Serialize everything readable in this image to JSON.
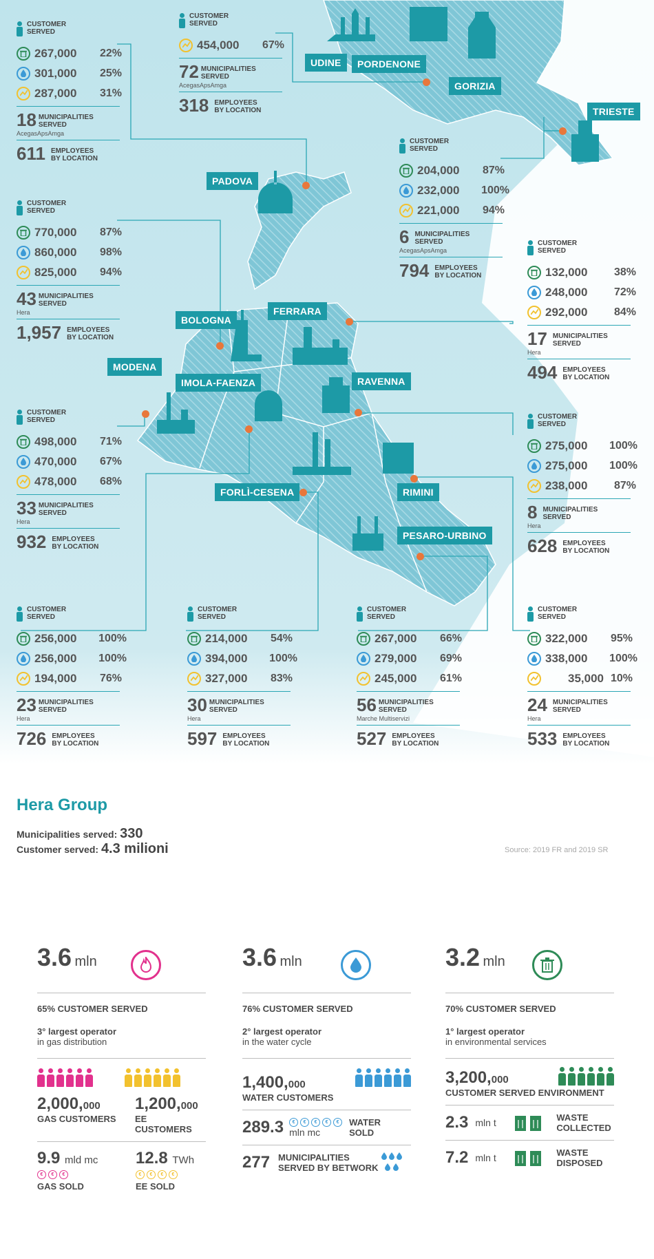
{
  "labels": {
    "customer": "CUSTOMER",
    "served": "SERVED",
    "municipalities": "MUNICIPALITIES",
    "employees": "EMPLOYEES",
    "by_location": "BY LOCATION"
  },
  "colors": {
    "teal": "#1d9aa6",
    "line": "#2aa6b4",
    "waste": "#2e8b57",
    "water": "#3b9ad6",
    "energy": "#f2c12e",
    "gas": "#e2318d",
    "dot": "#e8773b"
  },
  "cities": [
    "UDINE",
    "PORDENONE",
    "GORIZIA",
    "TRIESTE",
    "PADOVA",
    "FERRARA",
    "BOLOGNA",
    "MODENA",
    "IMOLA-FAENZA",
    "RAVENNA",
    "FORLÌ-CESENA",
    "RIMINI",
    "PESARO-URBINO"
  ],
  "blocks": {
    "udine": {
      "waste": "267,000",
      "waste_pct": "22%",
      "water": "301,000",
      "water_pct": "25%",
      "energy": "287,000",
      "energy_pct": "31%",
      "mun": "18",
      "company": "AcegasApsAmga",
      "emp": "611"
    },
    "pordenone": {
      "energy": "454,000",
      "energy_pct": "67%",
      "mun": "72",
      "company": "AcegasApsAmga",
      "emp": "318"
    },
    "trieste": {
      "waste": "204,000",
      "waste_pct": "87%",
      "water": "232,000",
      "water_pct": "100%",
      "energy": "221,000",
      "energy_pct": "94%",
      "mun": "6",
      "company": "AcegasApsAmga",
      "emp": "794"
    },
    "bologna": {
      "waste": "770,000",
      "waste_pct": "87%",
      "water": "860,000",
      "water_pct": "98%",
      "energy": "825,000",
      "energy_pct": "94%",
      "mun": "43",
      "company": "Hera",
      "emp": "1,957"
    },
    "ferrara": {
      "waste": "132,000",
      "waste_pct": "38%",
      "water": "248,000",
      "water_pct": "72%",
      "energy": "292,000",
      "energy_pct": "84%",
      "mun": "17",
      "company": "Hera",
      "emp": "494"
    },
    "modena": {
      "waste": "498,000",
      "waste_pct": "71%",
      "water": "470,000",
      "water_pct": "67%",
      "energy": "478,000",
      "energy_pct": "68%",
      "mun": "33",
      "company": "Hera",
      "emp": "932"
    },
    "ravenna": {
      "waste": "275,000",
      "waste_pct": "100%",
      "water": "275,000",
      "water_pct": "100%",
      "energy": "238,000",
      "energy_pct": "87%",
      "mun": "8",
      "company": "Hera",
      "emp": "628"
    },
    "imola": {
      "waste": "256,000",
      "waste_pct": "100%",
      "water": "256,000",
      "water_pct": "100%",
      "energy": "194,000",
      "energy_pct": "76%",
      "mun": "23",
      "company": "Hera",
      "emp": "726"
    },
    "forli": {
      "waste": "214,000",
      "waste_pct": "54%",
      "water": "394,000",
      "water_pct": "100%",
      "energy": "327,000",
      "energy_pct": "83%",
      "mun": "30",
      "company": "Hera",
      "emp": "597"
    },
    "pesaro": {
      "waste": "267,000",
      "waste_pct": "66%",
      "water": "279,000",
      "water_pct": "69%",
      "energy": "245,000",
      "energy_pct": "61%",
      "mun": "56",
      "company": "Marche Multiservizi",
      "emp": "527"
    },
    "rimini": {
      "waste": "322,000",
      "waste_pct": "95%",
      "water": "338,000",
      "water_pct": "100%",
      "energy": "35,000",
      "energy_pct": "10%",
      "mun": "24",
      "company": "Hera",
      "emp": "533"
    }
  },
  "hera": {
    "title": "Hera Group",
    "mun_label": "Municipalities served:",
    "mun_value": "330",
    "cust_label": "Customer served:",
    "cust_value": "4.3 milioni",
    "source": "Source: 2019 FR and 2019 SR"
  },
  "gas": {
    "big": "3.6",
    "unit": "mln",
    "share": "65% CUSTOMER SERVED",
    "op1": "3° largest operator",
    "op2": "in gas distribution",
    "gas_cust": "2,000,",
    "gas_cust_small": "000",
    "gas_cust_label": "GAS CUSTOMERS",
    "ee_cust": "1,200,",
    "ee_cust_small": "000",
    "ee_cust_label": "EE CUSTOMERS",
    "gas_sold": "9.9",
    "gas_sold_unit": "mld mc",
    "gas_sold_label": "GAS SOLD",
    "ee_sold": "12.8",
    "ee_sold_unit": "TWh",
    "ee_sold_label": "EE SOLD"
  },
  "water": {
    "big": "3.6",
    "unit": "mln",
    "share": "76% CUSTOMER SERVED",
    "op1": "2° largest operator",
    "op2": "in the water cycle",
    "cust": "1,400,",
    "cust_small": "000",
    "cust_label": "WATER CUSTOMERS",
    "sold": "289.3",
    "sold_unit": "mln mc",
    "sold_label1": "WATER",
    "sold_label2": "SOLD",
    "mun": "277",
    "mun_label1": "MUNICIPALITIES",
    "mun_label2": "SERVED BY BETWORK"
  },
  "waste": {
    "big": "3.2",
    "unit": "mln",
    "share": "70% CUSTOMER SERVED",
    "op1": "1° largest operator",
    "op2": "in environmental services",
    "cust": "3,200,",
    "cust_small": "000",
    "cust_label": "CUSTOMER SERVED ENVIRONMENT",
    "collected": "2.3",
    "collected_unit": "mln t",
    "collected_label1": "WASTE",
    "collected_label2": "COLLECTED",
    "disposed": "7.2",
    "disposed_unit": "mln t",
    "disposed_label1": "WASTE",
    "disposed_label2": "DISPOSED"
  }
}
